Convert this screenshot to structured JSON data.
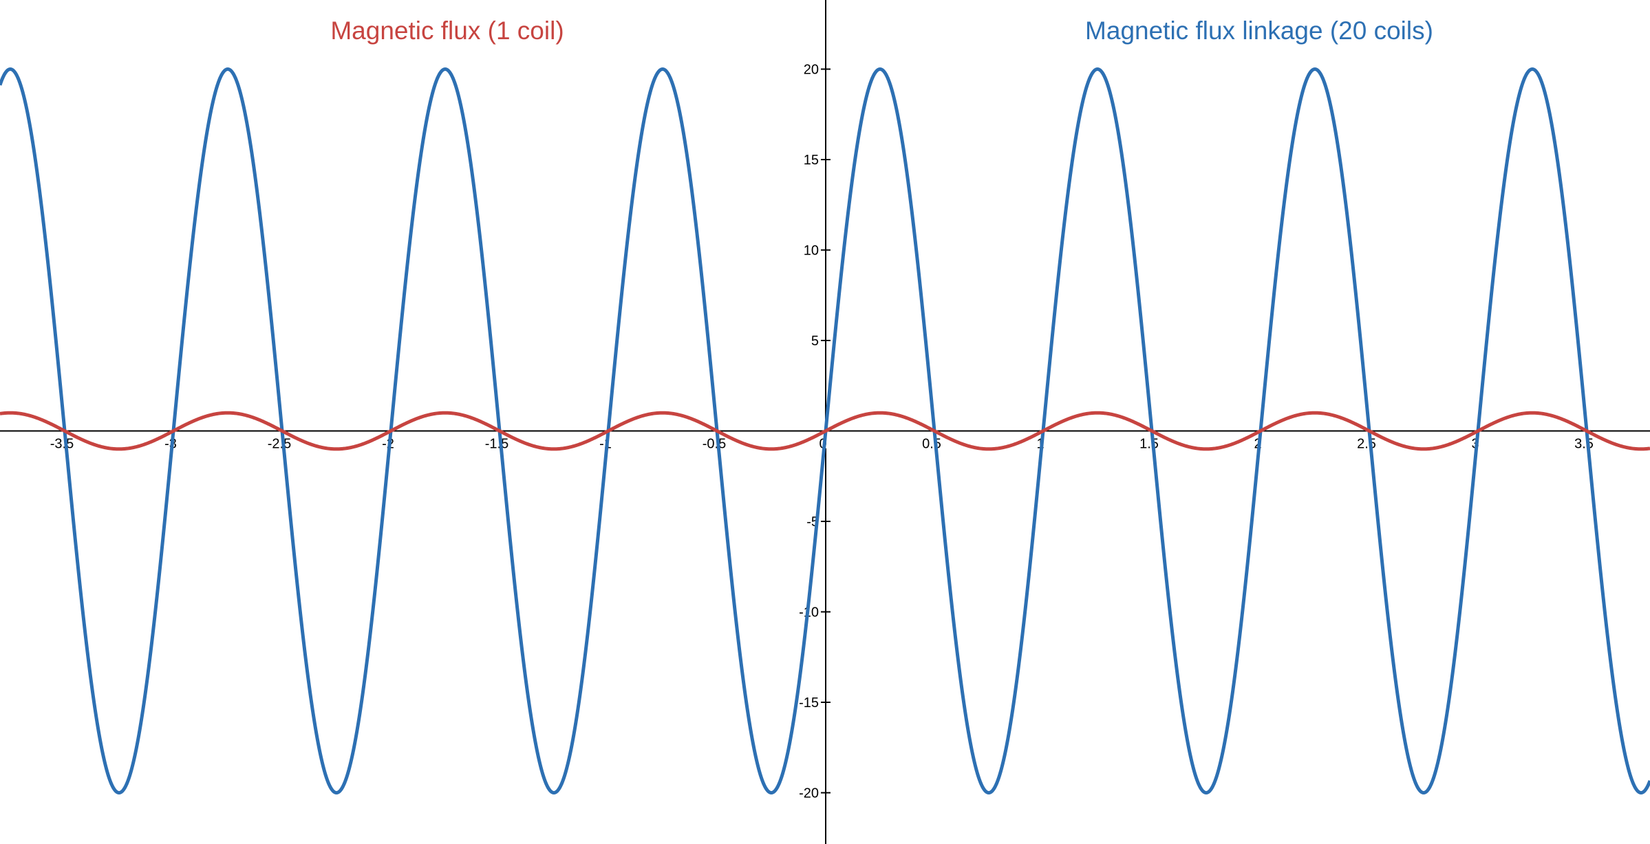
{
  "chart_data": {
    "type": "line",
    "title": "",
    "xlabel": "",
    "ylabel": "",
    "xlim": [
      -3.8,
      3.79
    ],
    "ylim": [
      -23,
      23.8
    ],
    "grid": false,
    "x_ticks": [
      "-3.5",
      "-3",
      "-2.5",
      "-2",
      "-1.5",
      "-1",
      "-0.5",
      "0",
      "0.5",
      "1",
      "1.5",
      "2",
      "2.5",
      "3",
      "3.5"
    ],
    "y_ticks": [
      "-20",
      "-15",
      "-10",
      "-5",
      "5",
      "10",
      "15",
      "20"
    ],
    "annotations": [
      {
        "text": "Magnetic flux (1 coil)",
        "color": "#c74440"
      },
      {
        "text": "Magnetic flux linkage (20 coils)",
        "color": "#2d70b3"
      }
    ],
    "series": [
      {
        "name": "Magnetic flux (1 coil)",
        "function": "y = sin(2πx)",
        "amplitude": 1,
        "period": 1,
        "color": "#c74440"
      },
      {
        "name": "Magnetic flux linkage (20 coils)",
        "function": "y = 20 sin(2πx)",
        "amplitude": 20,
        "period": 1,
        "color": "#2d70b3"
      }
    ]
  }
}
